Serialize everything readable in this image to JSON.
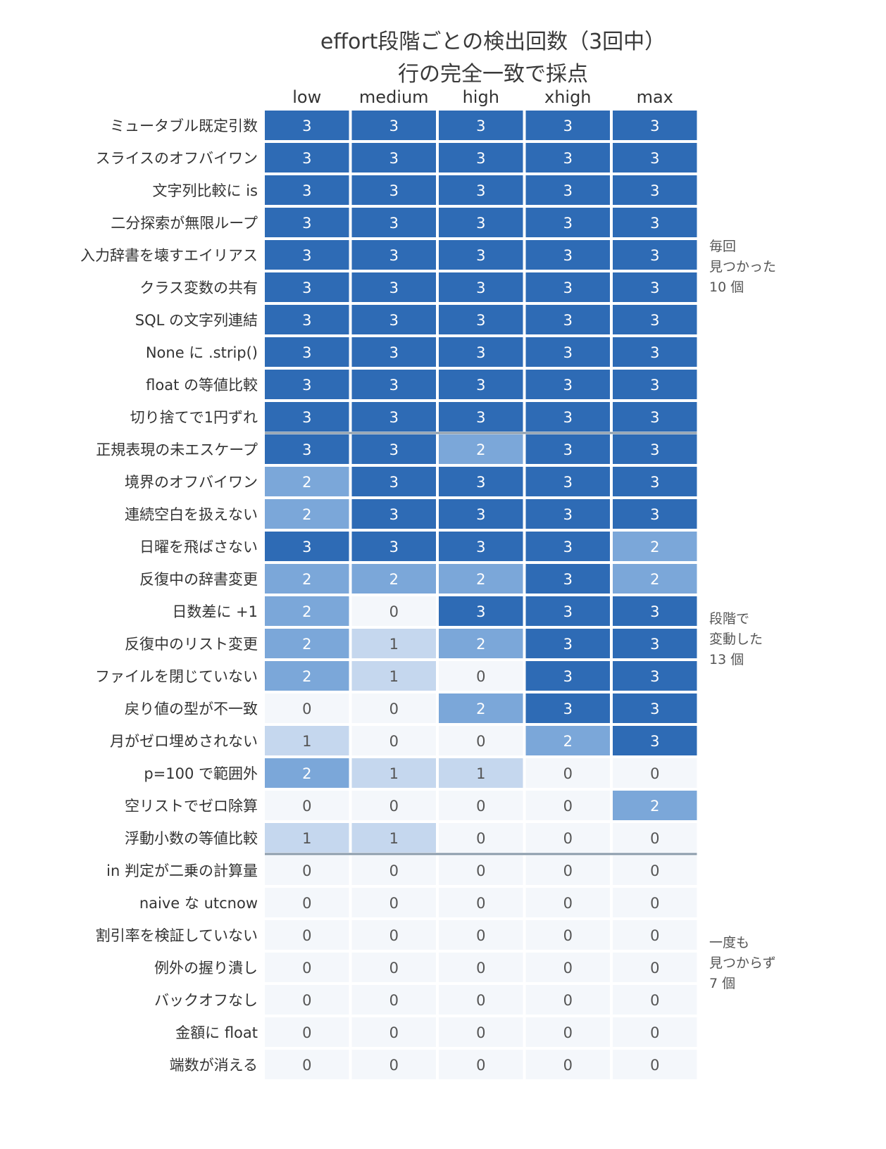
{
  "chart_data": {
    "type": "heatmap",
    "title": "effort段階ごとの検出回数（3回中）",
    "subtitle": "行の完全一致で採点",
    "columns": [
      "low",
      "medium",
      "high",
      "xhigh",
      "max"
    ],
    "rows": [
      "ミュータブル既定引数",
      "スライスのオフバイワン",
      "文字列比較に is",
      "二分探索が無限ループ",
      "入力辞書を壊すエイリアス",
      "クラス変数の共有",
      "SQL の文字列連結",
      "None に .strip()",
      "float の等値比較",
      "切り捨てで1円ずれ",
      "正規表現の未エスケープ",
      "境界のオフバイワン",
      "連続空白を扱えない",
      "日曜を飛ばさない",
      "反復中の辞書変更",
      "日数差に +1",
      "反復中のリスト変更",
      "ファイルを閉じていない",
      "戻り値の型が不一致",
      "月がゼロ埋めされない",
      "p=100 で範囲外",
      "空リストでゼロ除算",
      "浮動小数の等値比較",
      "in 判定が二乗の計算量",
      "naive な utcnow",
      "割引率を検証していない",
      "例外の握り潰し",
      "バックオフなし",
      "金額に float",
      "端数が消える"
    ],
    "values": [
      [
        3,
        3,
        3,
        3,
        3
      ],
      [
        3,
        3,
        3,
        3,
        3
      ],
      [
        3,
        3,
        3,
        3,
        3
      ],
      [
        3,
        3,
        3,
        3,
        3
      ],
      [
        3,
        3,
        3,
        3,
        3
      ],
      [
        3,
        3,
        3,
        3,
        3
      ],
      [
        3,
        3,
        3,
        3,
        3
      ],
      [
        3,
        3,
        3,
        3,
        3
      ],
      [
        3,
        3,
        3,
        3,
        3
      ],
      [
        3,
        3,
        3,
        3,
        3
      ],
      [
        3,
        3,
        2,
        3,
        3
      ],
      [
        2,
        3,
        3,
        3,
        3
      ],
      [
        2,
        3,
        3,
        3,
        3
      ],
      [
        3,
        3,
        3,
        3,
        2
      ],
      [
        2,
        2,
        2,
        3,
        2
      ],
      [
        2,
        0,
        3,
        3,
        3
      ],
      [
        2,
        1,
        2,
        3,
        3
      ],
      [
        2,
        1,
        0,
        3,
        3
      ],
      [
        0,
        0,
        2,
        3,
        3
      ],
      [
        1,
        0,
        0,
        2,
        3
      ],
      [
        2,
        1,
        1,
        0,
        0
      ],
      [
        0,
        0,
        0,
        0,
        2
      ],
      [
        1,
        1,
        0,
        0,
        0
      ],
      [
        0,
        0,
        0,
        0,
        0
      ],
      [
        0,
        0,
        0,
        0,
        0
      ],
      [
        0,
        0,
        0,
        0,
        0
      ],
      [
        0,
        0,
        0,
        0,
        0
      ],
      [
        0,
        0,
        0,
        0,
        0
      ],
      [
        0,
        0,
        0,
        0,
        0
      ],
      [
        0,
        0,
        0,
        0,
        0
      ]
    ],
    "color_scale": {
      "0": "#f4f7fb",
      "1": "#c5d7ee",
      "2": "#7ba7d9",
      "3": "#2e6bb5"
    },
    "text_colors": {
      "0": "#555555",
      "1": "#555555",
      "2": "#ffffff",
      "3": "#ffffff"
    },
    "groups": [
      {
        "lines": [
          "毎回",
          "見つかった",
          "10 個"
        ],
        "start_row": 0,
        "end_row": 9
      },
      {
        "lines": [
          "段階で",
          "変動した",
          "13 個"
        ],
        "start_row": 10,
        "end_row": 22
      },
      {
        "lines": [
          "一度も",
          "見つからず",
          "7 個"
        ],
        "start_row": 23,
        "end_row": 29
      }
    ],
    "separator_color": "#8a9bab"
  }
}
